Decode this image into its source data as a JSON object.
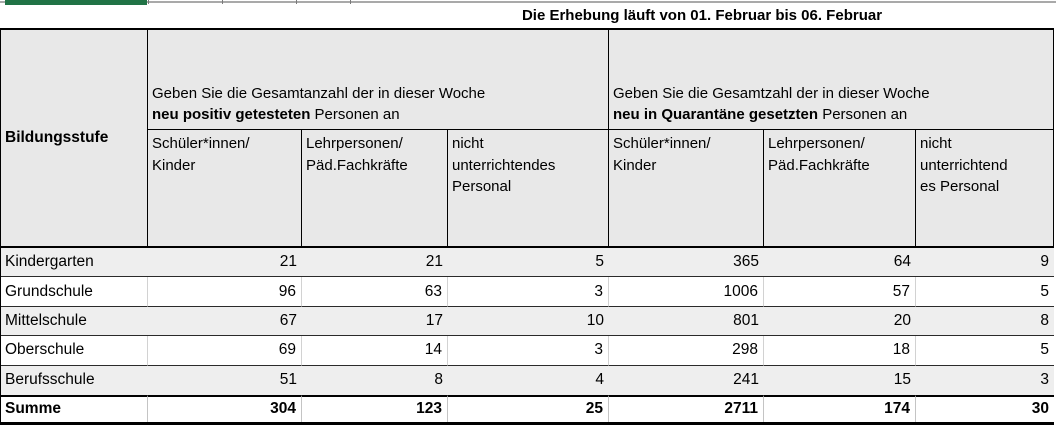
{
  "accent": {
    "green_bar_color": "#217346"
  },
  "title": "Die Erhebung läuft von 01. Februar bis 06. Februar",
  "table": {
    "corner_header": "Bildungsstufe",
    "groups": [
      {
        "line1": "Geben Sie die Gesamtanzahl der in dieser Woche",
        "bold": "neu positiv getesteten",
        "rest": " Personen an",
        "columns": [
          "Schüler*innen/\nKinder",
          "Lehrpersonen/\nPäd.Fachkräfte",
          "nicht\nunterrichtendes\nPersonal"
        ]
      },
      {
        "line1": "Geben Sie die Gesamtzahl der in dieser Woche",
        "bold": "neu in Quarantäne gesetzten",
        "rest": " Personen an",
        "columns": [
          "Schüler*innen/\nKinder",
          "Lehrpersonen/\nPäd.Fachkräfte",
          "nicht\nunterrichtend\nes Personal"
        ]
      }
    ],
    "rows": [
      {
        "label": "Kindergarten",
        "values": [
          21,
          21,
          5,
          365,
          64,
          9
        ]
      },
      {
        "label": "Grundschule",
        "values": [
          96,
          63,
          3,
          1006,
          57,
          5
        ]
      },
      {
        "label": "Mittelschule",
        "values": [
          67,
          17,
          10,
          801,
          20,
          8
        ]
      },
      {
        "label": "Oberschule",
        "values": [
          69,
          14,
          3,
          298,
          18,
          5
        ]
      },
      {
        "label": "Berufsschule",
        "values": [
          51,
          8,
          4,
          241,
          15,
          3
        ]
      }
    ],
    "total_row": {
      "label": "Summe",
      "values": [
        304,
        123,
        25,
        2711,
        174,
        30
      ]
    }
  }
}
